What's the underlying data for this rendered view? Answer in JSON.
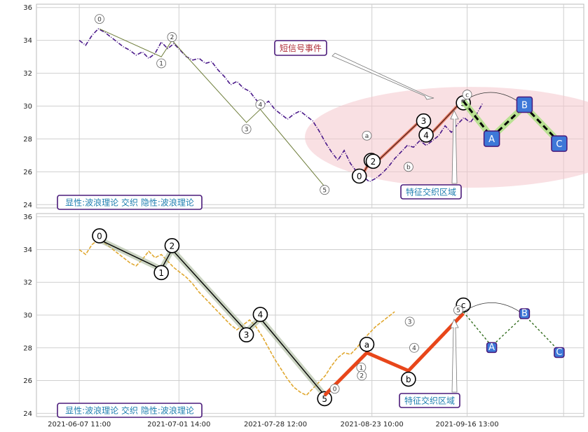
{
  "chart_data": [
    {
      "type": "line",
      "panel": "top",
      "ylim": [
        23.8,
        36.2
      ],
      "yticks": [
        24,
        26,
        28,
        30,
        32,
        34,
        36
      ],
      "grid": true,
      "legend_text": "显性:波浪理论 交织 隐性:波浪理论",
      "annotations": {
        "event_label": "短信号事件",
        "region_label": "特征交织区域"
      },
      "price_color": "#4b1a8a",
      "price_line": [
        [
          0,
          34.0
        ],
        [
          1,
          33.7
        ],
        [
          2,
          34.3
        ],
        [
          3,
          34.7
        ],
        [
          4,
          34.5
        ],
        [
          5,
          34.2
        ],
        [
          6,
          33.9
        ],
        [
          7,
          33.6
        ],
        [
          8,
          33.4
        ],
        [
          9,
          33.1
        ],
        [
          10,
          33.3
        ],
        [
          11,
          32.9
        ],
        [
          12,
          33.2
        ],
        [
          13,
          33.9
        ],
        [
          14,
          33.5
        ],
        [
          15,
          33.8
        ],
        [
          16,
          33.4
        ],
        [
          17,
          33.0
        ],
        [
          18,
          32.8
        ],
        [
          19,
          32.9
        ],
        [
          20,
          32.6
        ],
        [
          21,
          32.7
        ],
        [
          22,
          32.2
        ],
        [
          23,
          31.8
        ],
        [
          24,
          31.3
        ],
        [
          25,
          31.5
        ],
        [
          26,
          31.1
        ],
        [
          27,
          30.9
        ],
        [
          28,
          30.4
        ],
        [
          29,
          30.0
        ],
        [
          30,
          30.3
        ],
        [
          31,
          29.8
        ],
        [
          32,
          29.5
        ],
        [
          33,
          29.2
        ],
        [
          34,
          29.5
        ],
        [
          35,
          29.7
        ],
        [
          36,
          29.4
        ],
        [
          37,
          29.1
        ],
        [
          38,
          28.5
        ],
        [
          39,
          27.8
        ],
        [
          40,
          27.2
        ],
        [
          41,
          26.7
        ],
        [
          42,
          27.3
        ],
        [
          43,
          26.5
        ],
        [
          44,
          26.0
        ],
        [
          45,
          25.7
        ],
        [
          46,
          25.4
        ],
        [
          47,
          25.6
        ],
        [
          48,
          25.9
        ],
        [
          49,
          26.3
        ],
        [
          50,
          26.8
        ],
        [
          51,
          27.2
        ],
        [
          52,
          27.6
        ],
        [
          53,
          27.5
        ],
        [
          54,
          27.9
        ],
        [
          55,
          27.6
        ],
        [
          56,
          27.9
        ],
        [
          57,
          28.2
        ],
        [
          58,
          28.8
        ],
        [
          59,
          28.4
        ],
        [
          60,
          28.9
        ],
        [
          61,
          29.3
        ],
        [
          62,
          29.0
        ],
        [
          63,
          29.5
        ],
        [
          64,
          30.2
        ]
      ],
      "main_waves": {
        "labels": [
          "0",
          "1",
          "2",
          "3",
          "4",
          "5"
        ],
        "points": [
          [
            44.4,
            25.5
          ],
          [
            46.5,
            26.9
          ],
          [
            46.6,
            26.4
          ],
          [
            54.6,
            29.3
          ],
          [
            55.0,
            28.0
          ],
          [
            60.9,
            30.4
          ]
        ],
        "color": "#e0644a"
      },
      "abc_projection": {
        "labels": [
          "A",
          "B",
          "C"
        ],
        "points": [
          [
            60.9,
            30.3
          ],
          [
            65.4,
            28.1
          ],
          [
            70.6,
            30.0
          ],
          [
            76.1,
            27.8
          ]
        ],
        "color": "#3d78d8"
      },
      "small_labels": {
        "labels": [
          "0",
          "1",
          "2",
          "3",
          "4",
          "5",
          "a",
          "b",
          "c"
        ],
        "points": [
          [
            3.2,
            35.3
          ],
          [
            13.0,
            32.6
          ],
          [
            14.7,
            34.2
          ],
          [
            26.5,
            28.6
          ],
          [
            28.7,
            30.1
          ],
          [
            38.9,
            24.9
          ],
          [
            45.6,
            28.2
          ],
          [
            52.2,
            26.3
          ],
          [
            61.5,
            30.7
          ]
        ]
      }
    },
    {
      "type": "line",
      "panel": "bottom",
      "ylim": [
        23.8,
        36.2
      ],
      "yticks": [
        24,
        26,
        28,
        30,
        32,
        34,
        36
      ],
      "grid": true,
      "legend_text": "显性:波浪理论 交织 隐性:波浪理论",
      "annotations": {
        "region_label": "特征交织区域"
      },
      "price_color": "#e0a830",
      "price_line": [
        [
          0,
          34.0
        ],
        [
          1,
          33.7
        ],
        [
          2,
          34.3
        ],
        [
          3,
          34.6
        ],
        [
          4,
          34.4
        ],
        [
          5,
          34.1
        ],
        [
          6,
          33.8
        ],
        [
          7,
          33.5
        ],
        [
          8,
          33.2
        ],
        [
          9,
          33.0
        ],
        [
          10,
          33.4
        ],
        [
          11,
          33.9
        ],
        [
          12,
          33.5
        ],
        [
          13,
          33.7
        ],
        [
          14,
          33.3
        ],
        [
          15,
          32.9
        ],
        [
          16,
          32.6
        ],
        [
          17,
          32.3
        ],
        [
          18,
          31.9
        ],
        [
          19,
          31.4
        ],
        [
          20,
          31.0
        ],
        [
          21,
          30.6
        ],
        [
          22,
          30.2
        ],
        [
          23,
          29.8
        ],
        [
          24,
          29.4
        ],
        [
          25,
          29.1
        ],
        [
          26,
          29.4
        ],
        [
          27,
          29.7
        ],
        [
          28,
          29.3
        ],
        [
          29,
          28.7
        ],
        [
          30,
          28.0
        ],
        [
          31,
          27.3
        ],
        [
          32,
          26.7
        ],
        [
          33,
          26.1
        ],
        [
          34,
          25.6
        ],
        [
          35,
          25.3
        ],
        [
          36,
          25.1
        ],
        [
          37,
          25.5
        ],
        [
          38,
          25.9
        ],
        [
          39,
          26.3
        ],
        [
          40,
          26.9
        ],
        [
          41,
          27.4
        ],
        [
          42,
          27.7
        ],
        [
          43,
          27.6
        ],
        [
          44,
          28.0
        ],
        [
          45,
          28.5
        ],
        [
          46,
          28.9
        ],
        [
          47,
          29.3
        ],
        [
          48,
          29.6
        ],
        [
          49,
          29.9
        ],
        [
          50,
          30.2
        ]
      ],
      "main_waves": {
        "labels": [
          "0",
          "1",
          "2",
          "3",
          "4",
          "5"
        ],
        "points": [
          [
            3.2,
            34.6
          ],
          [
            13.0,
            32.8
          ],
          [
            14.7,
            34.0
          ],
          [
            26.5,
            29.0
          ],
          [
            28.7,
            29.8
          ],
          [
            38.9,
            25.1
          ]
        ],
        "color": "#6e7d3a"
      },
      "abc_main": {
        "labels": [
          "a",
          "b",
          "c"
        ],
        "points": [
          [
            38.9,
            25.1
          ],
          [
            45.6,
            27.7
          ],
          [
            52.2,
            26.6
          ],
          [
            60.9,
            30.1
          ]
        ],
        "color": "#e8461a"
      },
      "abc_projection": {
        "labels": [
          "A",
          "B",
          "C"
        ],
        "points": [
          [
            60.9,
            30.2
          ],
          [
            65.4,
            28.1
          ],
          [
            70.6,
            30.0
          ],
          [
            76.1,
            27.8
          ]
        ],
        "color": "#3d78d8"
      },
      "small_labels": {
        "labels": [
          "0",
          "1",
          "2",
          "3",
          "4",
          "5"
        ],
        "points": [
          [
            40.5,
            25.5
          ],
          [
            44.7,
            26.8
          ],
          [
            44.8,
            26.3
          ],
          [
            52.4,
            29.6
          ],
          [
            53.1,
            28.0
          ],
          [
            60.1,
            30.3
          ]
        ]
      }
    }
  ],
  "x_axis": {
    "tick_labels": [
      "2021-06-07 11:00",
      "2021-07-01 14:00",
      "2021-07-28 12:00",
      "2021-08-23 10:00",
      "2021-09-16 13:00"
    ],
    "tick_positions": [
      0,
      15.8,
      31.1,
      46.4,
      61.5
    ],
    "grid_positions": [
      0,
      15.8,
      31.1,
      46.4,
      61.5,
      76.8
    ],
    "xlim": [
      -6.8,
      80.0
    ]
  }
}
